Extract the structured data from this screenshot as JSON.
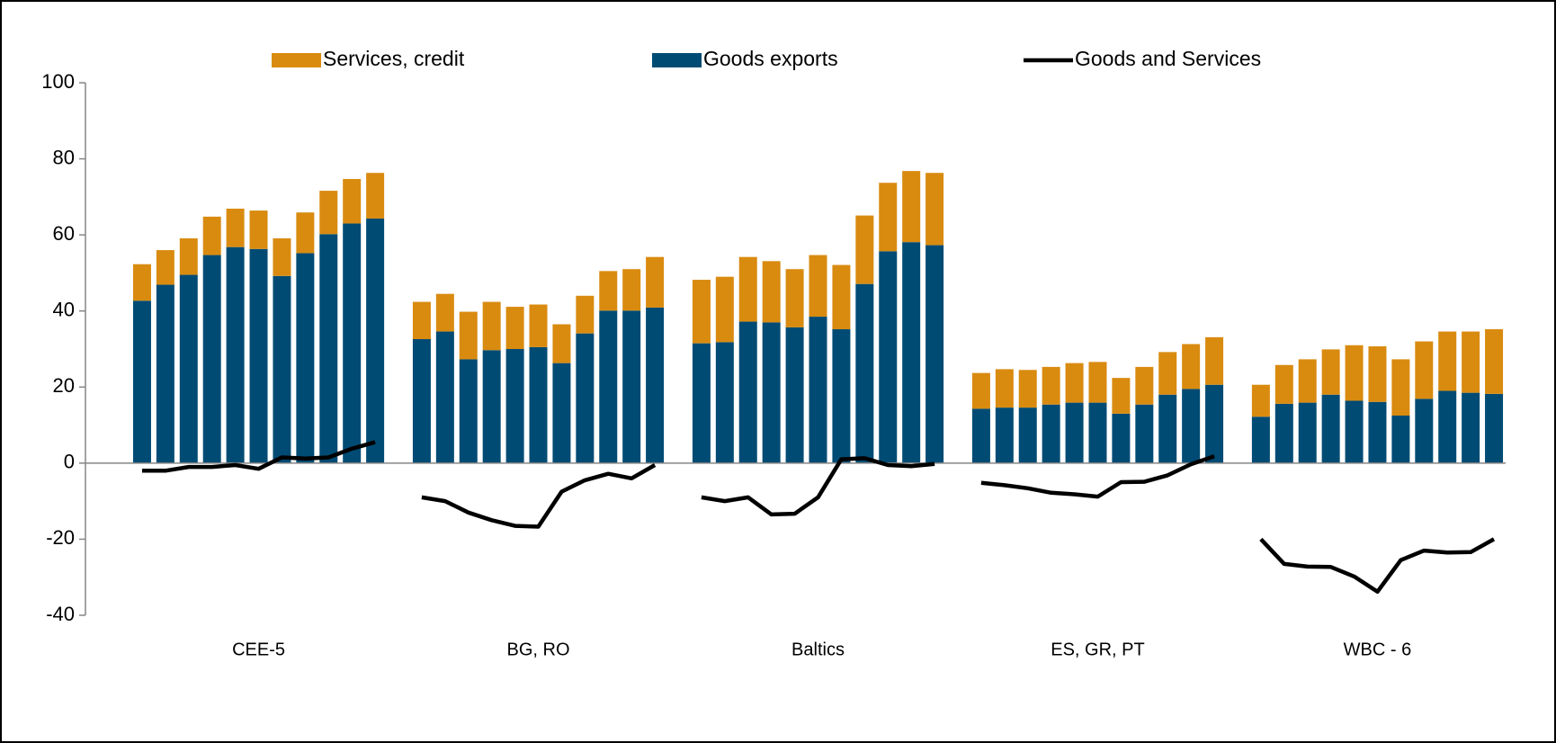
{
  "chart_data": {
    "type": "bar",
    "stacked": true,
    "legend": "top",
    "categories": [
      null,
      null,
      null,
      null,
      null,
      "CEE-5",
      null,
      null,
      null,
      null,
      null,
      null,
      null,
      null,
      null,
      null,
      null,
      "BG, RO",
      null,
      null,
      null,
      null,
      null,
      null,
      null,
      null,
      null,
      null,
      null,
      "Baltics",
      null,
      null,
      null,
      null,
      null,
      null,
      null,
      null,
      null,
      null,
      null,
      "ES, GR, PT",
      null,
      null,
      null,
      null,
      null,
      null,
      null,
      null,
      null,
      null,
      null,
      "WBC - 6",
      null,
      null,
      null,
      null,
      null
    ],
    "series": [
      {
        "name": "Services, credit",
        "type": "bar",
        "color": "#d98b10",
        "values": [
          9.6,
          9.1,
          9.6,
          10.1,
          10.1,
          10.1,
          9.9,
          10.7,
          11.4,
          11.7,
          12.0,
          null,
          9.8,
          9.9,
          12.5,
          12.7,
          11.1,
          11.2,
          10.2,
          9.9,
          10.4,
          10.9,
          13.3,
          null,
          16.7,
          17.2,
          17.0,
          16.1,
          15.3,
          16.2,
          16.9,
          18.0,
          18.0,
          18.7,
          19.0,
          null,
          9.4,
          10.1,
          9.9,
          9.9,
          10.4,
          10.7,
          9.4,
          9.9,
          11.2,
          11.8,
          12.5,
          null,
          8.4,
          10.2,
          11.4,
          11.9,
          14.6,
          14.6,
          14.8,
          15.1,
          15.6,
          16.1,
          17.0
        ]
      },
      {
        "name": "Goods exports",
        "type": "bar",
        "color": "#004b74",
        "values": [
          42.7,
          46.9,
          49.5,
          54.7,
          56.8,
          56.3,
          49.2,
          55.2,
          60.2,
          63.0,
          64.3,
          null,
          32.6,
          34.6,
          27.3,
          29.7,
          30.0,
          30.5,
          26.3,
          34.1,
          40.1,
          40.1,
          40.9,
          null,
          31.5,
          31.8,
          37.2,
          37.0,
          35.7,
          38.5,
          35.2,
          47.1,
          55.7,
          58.1,
          57.3,
          null,
          14.3,
          14.6,
          14.6,
          15.4,
          15.9,
          15.9,
          13.0,
          15.4,
          18.0,
          19.5,
          20.6,
          null,
          12.2,
          15.6,
          15.9,
          18.0,
          16.4,
          16.1,
          12.5,
          16.9,
          19.0,
          18.5,
          18.2
        ]
      },
      {
        "name": "Goods and Services",
        "type": "line",
        "color": "#000000",
        "values": [
          -2,
          -2,
          -1,
          -1,
          -0.5,
          -1.5,
          1.5,
          1.2,
          1.5,
          3.8,
          5.5,
          null,
          -9,
          -10,
          -13,
          -15,
          -16.5,
          -16.7,
          -7.5,
          -4.5,
          -2.8,
          -4,
          -0.5,
          null,
          -9,
          -10,
          -9,
          -13.5,
          -13.3,
          -9,
          1,
          1.3,
          -0.5,
          -0.8,
          -0.2,
          null,
          -5.2,
          -5.8,
          -6.6,
          -7.8,
          -8.2,
          -8.8,
          -5,
          -4.9,
          -3.2,
          -0.3,
          1.8,
          null,
          -20,
          -26.5,
          -27.2,
          -27.3,
          -29.8,
          -33.8,
          -25.5,
          -23,
          -23.5,
          -23.4,
          -20
        ]
      }
    ],
    "ylim": [
      -40,
      100
    ],
    "yticks": [
      -40,
      -20,
      0,
      20,
      40,
      60,
      80,
      100
    ],
    "grid": false
  }
}
